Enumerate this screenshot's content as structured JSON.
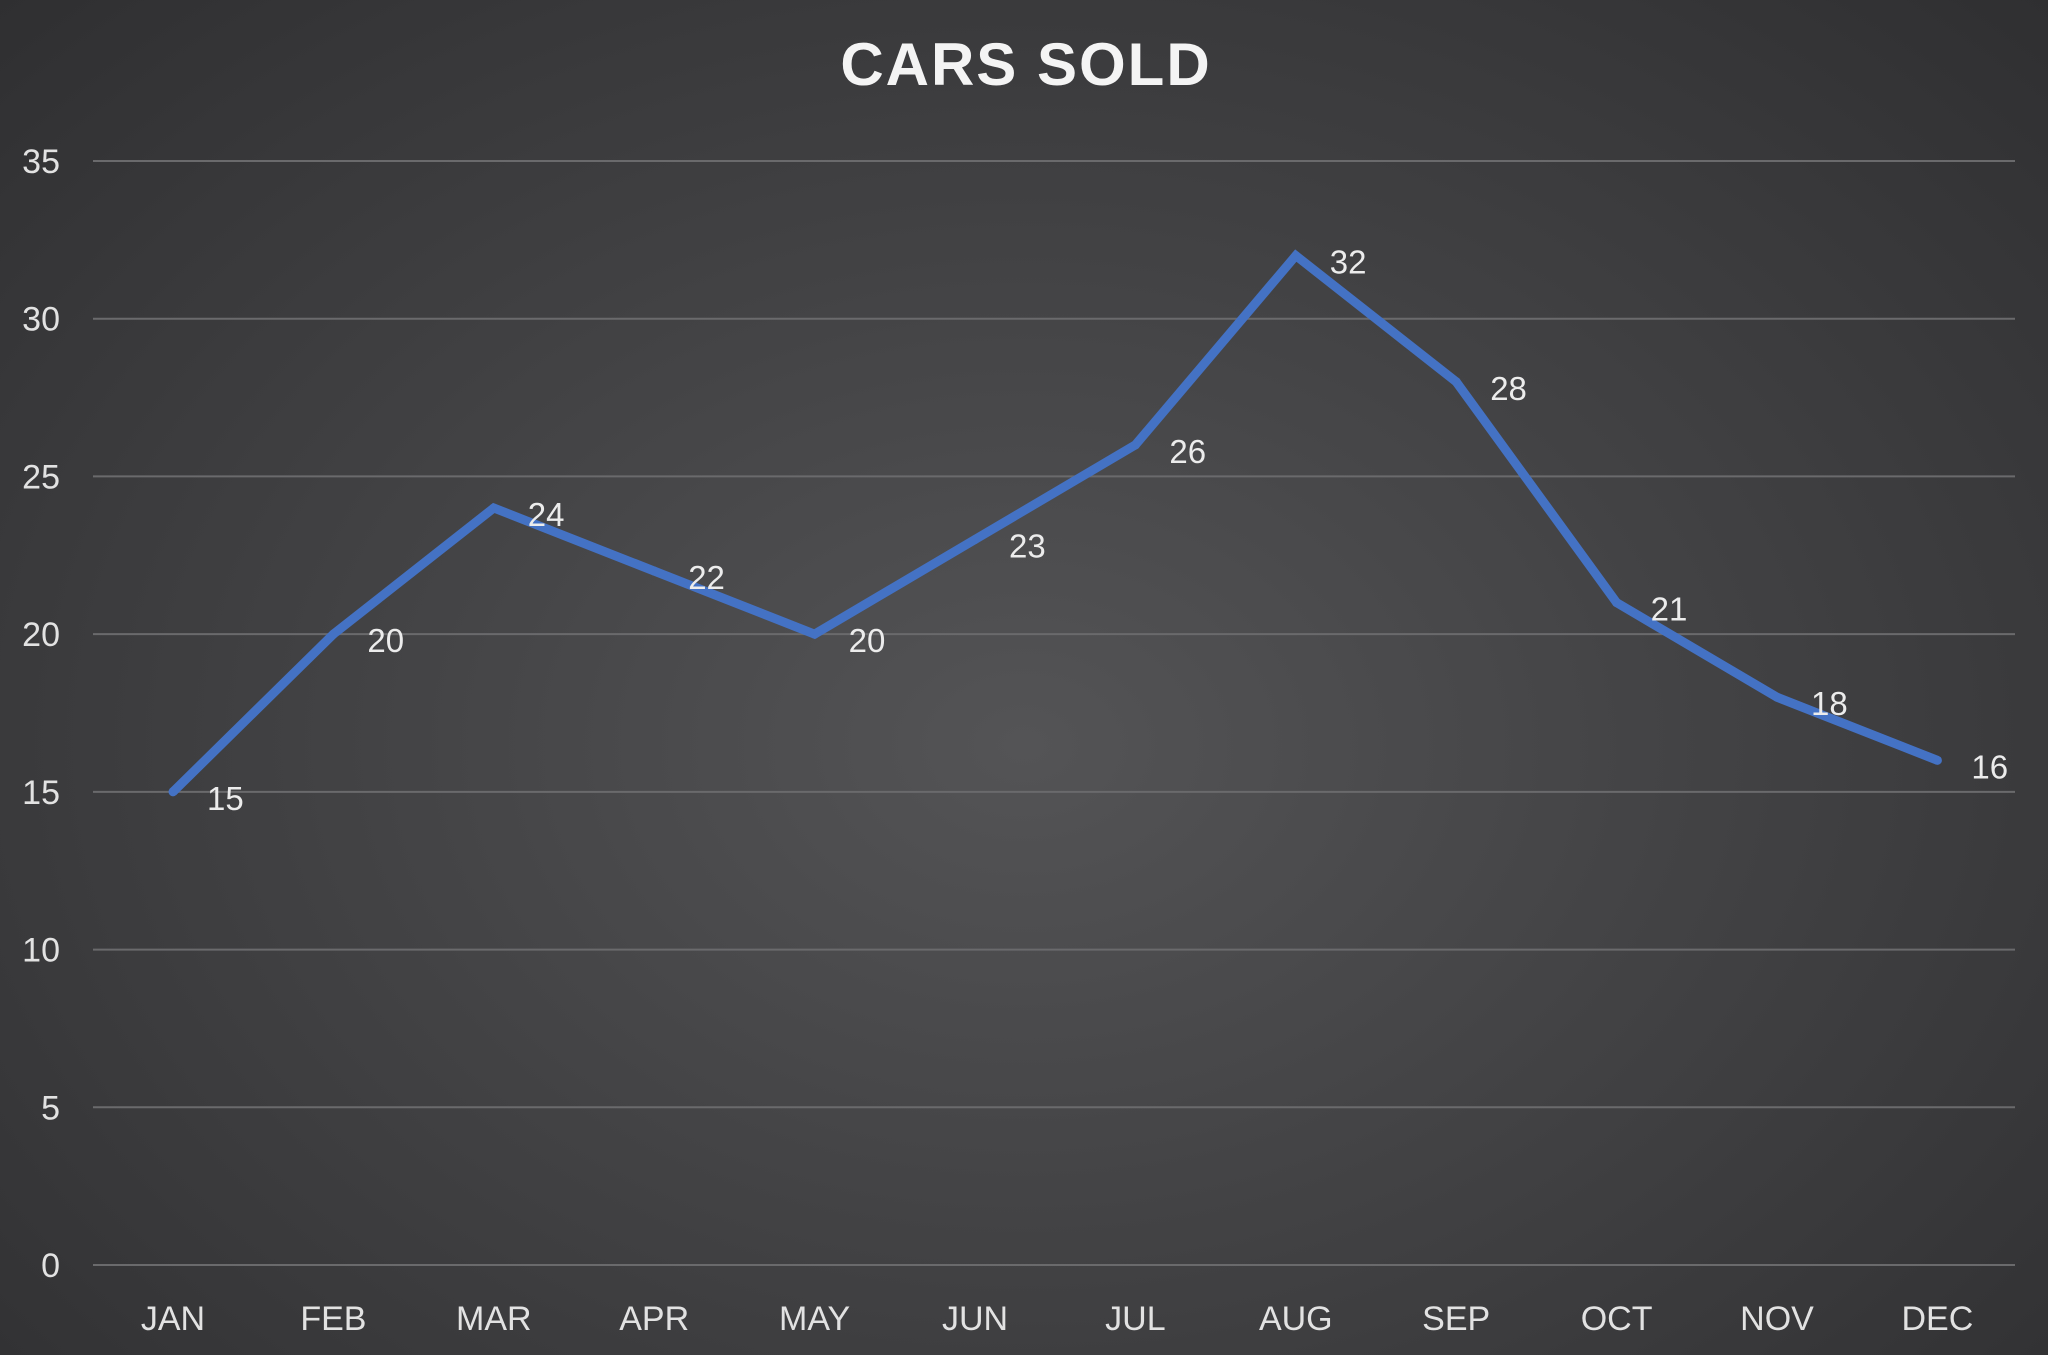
{
  "chart_data": {
    "type": "line",
    "title": "CARS SOLD",
    "xlabel": "",
    "ylabel": "",
    "categories": [
      "JAN",
      "FEB",
      "MAR",
      "APR",
      "MAY",
      "JUN",
      "JUL",
      "AUG",
      "SEP",
      "OCT",
      "NOV",
      "DEC"
    ],
    "series": [
      {
        "name": "Cars Sold",
        "values": [
          15,
          20,
          24,
          22,
          20,
          23,
          26,
          32,
          28,
          21,
          18,
          16
        ],
        "color": "#4472c4"
      }
    ],
    "ylim": [
      0,
      35
    ],
    "yticks": [
      0,
      5,
      10,
      15,
      20,
      25,
      30,
      35
    ],
    "grid": true,
    "data_labels": true,
    "legend": "none"
  }
}
